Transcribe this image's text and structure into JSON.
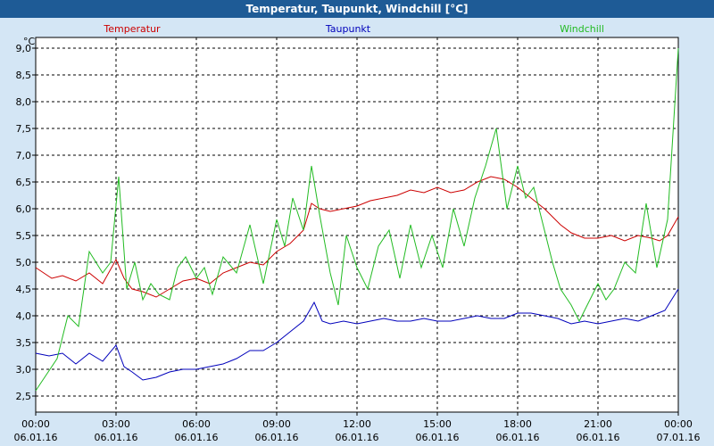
{
  "window": {
    "title": "Temperatur, Taupunkt, Windchill [°C]"
  },
  "chart_data": {
    "type": "line",
    "title": "Temperatur, Taupunkt, Windchill [°C]",
    "ylabel": "°C",
    "ylim": [
      2.2,
      9.2
    ],
    "yticks": [
      "2,5",
      "3,0",
      "3,5",
      "4,0",
      "4,5",
      "5,0",
      "5,5",
      "6,0",
      "6,5",
      "7,0",
      "7,5",
      "8,0",
      "8,5",
      "9,0"
    ],
    "xlim": [
      0,
      24
    ],
    "xticks": [
      {
        "time": "00:00",
        "date": "06.01.16"
      },
      {
        "time": "03:00",
        "date": "06.01.16"
      },
      {
        "time": "06:00",
        "date": "06.01.16"
      },
      {
        "time": "09:00",
        "date": "06.01.16"
      },
      {
        "time": "12:00",
        "date": "06.01.16"
      },
      {
        "time": "15:00",
        "date": "06.01.16"
      },
      {
        "time": "18:00",
        "date": "06.01.16"
      },
      {
        "time": "21:00",
        "date": "06.01.16"
      },
      {
        "time": "00:00",
        "date": "07.01.16"
      }
    ],
    "grid": true,
    "legend": "top",
    "series": [
      {
        "name": "Temperatur",
        "color": "#cc0000",
        "x": [
          0,
          0.3,
          0.6,
          1,
          1.5,
          2,
          2.5,
          3,
          3.3,
          3.6,
          4,
          4.5,
          5,
          5.5,
          6,
          6.5,
          7,
          7.5,
          8,
          8.5,
          9,
          9.5,
          10,
          10.3,
          10.6,
          11,
          11.5,
          12,
          12.5,
          13,
          13.5,
          14,
          14.5,
          15,
          15.5,
          16,
          16.5,
          17,
          17.5,
          18,
          18.5,
          19,
          19.3,
          19.6,
          20,
          20.5,
          21,
          21.5,
          22,
          22.5,
          23,
          23.3,
          23.6,
          24
        ],
        "y": [
          4.9,
          4.8,
          4.7,
          4.75,
          4.65,
          4.8,
          4.6,
          5.05,
          4.7,
          4.5,
          4.45,
          4.35,
          4.5,
          4.65,
          4.7,
          4.6,
          4.8,
          4.9,
          5.0,
          4.95,
          5.2,
          5.35,
          5.6,
          6.1,
          6.0,
          5.95,
          6.0,
          6.05,
          6.15,
          6.2,
          6.25,
          6.35,
          6.3,
          6.4,
          6.3,
          6.35,
          6.5,
          6.6,
          6.55,
          6.4,
          6.2,
          6.0,
          5.85,
          5.7,
          5.55,
          5.45,
          5.45,
          5.5,
          5.4,
          5.5,
          5.45,
          5.4,
          5.5,
          5.85
        ]
      },
      {
        "name": "Taupunkt",
        "color": "#0000bb",
        "x": [
          0,
          0.5,
          1,
          1.5,
          2,
          2.5,
          3,
          3.3,
          3.6,
          4,
          4.5,
          5,
          5.5,
          6,
          6.5,
          7,
          7.5,
          8,
          8.5,
          9,
          9.5,
          10,
          10.4,
          10.7,
          11,
          11.5,
          12,
          12.5,
          13,
          13.5,
          14,
          14.5,
          15,
          15.5,
          16,
          16.5,
          17,
          17.5,
          18,
          18.5,
          19,
          19.5,
          20,
          20.5,
          21,
          21.5,
          22,
          22.5,
          23,
          23.5,
          24
        ],
        "y": [
          3.3,
          3.25,
          3.3,
          3.1,
          3.3,
          3.15,
          3.45,
          3.05,
          2.95,
          2.8,
          2.85,
          2.95,
          3.0,
          3.0,
          3.05,
          3.1,
          3.2,
          3.35,
          3.35,
          3.5,
          3.7,
          3.9,
          4.25,
          3.9,
          3.85,
          3.9,
          3.85,
          3.9,
          3.95,
          3.9,
          3.9,
          3.95,
          3.9,
          3.9,
          3.95,
          4.0,
          3.95,
          3.95,
          4.05,
          4.05,
          4.0,
          3.95,
          3.85,
          3.9,
          3.85,
          3.9,
          3.95,
          3.9,
          4.0,
          4.1,
          4.5
        ]
      },
      {
        "name": "Windchill",
        "color": "#22bb22",
        "x": [
          0,
          0.4,
          0.8,
          1.2,
          1.6,
          2,
          2.5,
          2.8,
          3.1,
          3.4,
          3.7,
          4,
          4.3,
          4.6,
          5,
          5.3,
          5.6,
          6,
          6.3,
          6.6,
          7,
          7.5,
          8,
          8.5,
          9,
          9.3,
          9.6,
          10,
          10.3,
          10.6,
          11,
          11.3,
          11.6,
          12,
          12.4,
          12.8,
          13.2,
          13.6,
          14,
          14.4,
          14.8,
          15.2,
          15.6,
          16,
          16.4,
          16.8,
          17.2,
          17.6,
          18,
          18.3,
          18.6,
          19,
          19.3,
          19.6,
          20,
          20.3,
          20.6,
          21,
          21.3,
          21.6,
          22,
          22.4,
          22.8,
          23.2,
          23.6,
          24
        ],
        "y": [
          2.6,
          2.9,
          3.2,
          4.0,
          3.8,
          5.2,
          4.8,
          5.0,
          6.6,
          4.5,
          5.0,
          4.3,
          4.6,
          4.4,
          4.3,
          4.9,
          5.1,
          4.7,
          4.9,
          4.4,
          5.1,
          4.8,
          5.7,
          4.6,
          5.8,
          5.3,
          6.2,
          5.6,
          6.8,
          5.9,
          4.8,
          4.2,
          5.5,
          4.9,
          4.5,
          5.3,
          5.6,
          4.7,
          5.7,
          4.9,
          5.5,
          4.9,
          6.0,
          5.3,
          6.2,
          6.8,
          7.5,
          6.0,
          6.8,
          6.2,
          6.4,
          5.6,
          5.0,
          4.5,
          4.2,
          3.9,
          4.2,
          4.6,
          4.3,
          4.5,
          5.0,
          4.8,
          6.1,
          4.9,
          5.8,
          9.0
        ]
      }
    ]
  }
}
